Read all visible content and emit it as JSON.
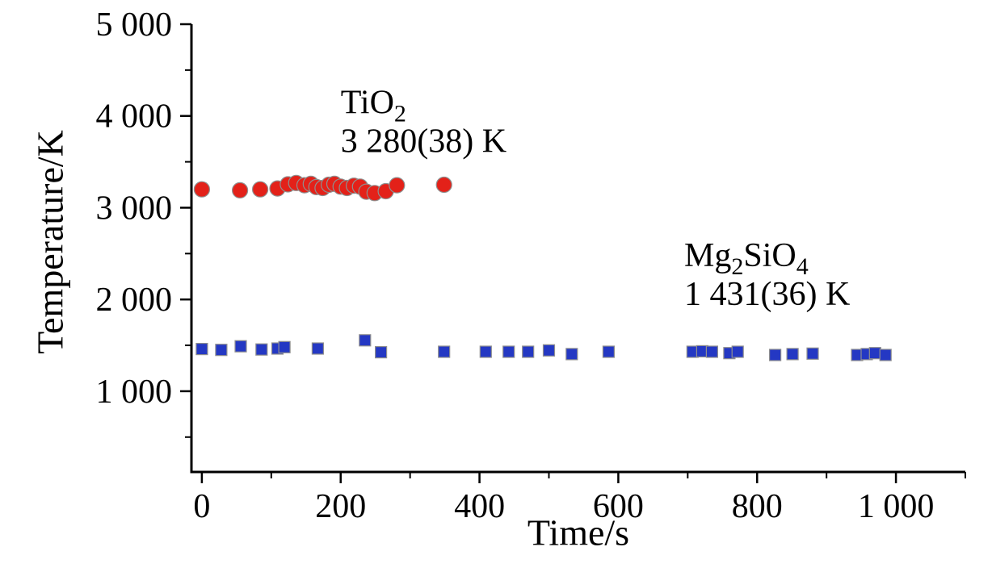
{
  "chart_data": {
    "type": "scatter",
    "title": "",
    "xlabel": "Time/s",
    "ylabel": "Temperature/K",
    "xlim": [
      -15,
      1100
    ],
    "ylim": [
      120,
      5000
    ],
    "x_ticks": [
      0,
      200,
      400,
      600,
      800,
      1000
    ],
    "x_tick_labels": [
      "0",
      "200",
      "400",
      "600",
      "800",
      "1 000"
    ],
    "x_minor_step": 100,
    "y_ticks": [
      1000,
      2000,
      3000,
      4000,
      5000
    ],
    "y_tick_labels": [
      "1 000",
      "2 000",
      "3 000",
      "4 000",
      "5 000"
    ],
    "y_minor_step": 500,
    "grid": false,
    "legend_position": "none",
    "series": [
      {
        "name": "TiO2",
        "marker": "circle",
        "color": "#e32119",
        "edge_color": "#8f8f8f",
        "points": [
          [
            0,
            3200
          ],
          [
            55,
            3190
          ],
          [
            84,
            3200
          ],
          [
            109,
            3210
          ],
          [
            124,
            3255
          ],
          [
            136,
            3270
          ],
          [
            148,
            3245
          ],
          [
            157,
            3260
          ],
          [
            165,
            3225
          ],
          [
            174,
            3215
          ],
          [
            183,
            3250
          ],
          [
            191,
            3260
          ],
          [
            200,
            3230
          ],
          [
            209,
            3215
          ],
          [
            219,
            3240
          ],
          [
            228,
            3230
          ],
          [
            237,
            3175
          ],
          [
            249,
            3160
          ],
          [
            265,
            3180
          ],
          [
            281,
            3245
          ],
          [
            349,
            3250
          ]
        ],
        "annotation": {
          "x": 200,
          "y": 4030,
          "lines": [
            [
              {
                "t": "TiO"
              },
              {
                "sub": "2"
              }
            ],
            [
              {
                "t": "3 280(38) K"
              }
            ]
          ]
        }
      },
      {
        "name": "Mg2SiO4",
        "marker": "square",
        "color": "#2438c3",
        "edge_color": "#8f8f8f",
        "points": [
          [
            0,
            1460
          ],
          [
            28,
            1450
          ],
          [
            56,
            1490
          ],
          [
            86,
            1455
          ],
          [
            109,
            1465
          ],
          [
            119,
            1480
          ],
          [
            167,
            1465
          ],
          [
            235,
            1555
          ],
          [
            258,
            1425
          ],
          [
            349,
            1430
          ],
          [
            409,
            1430
          ],
          [
            442,
            1430
          ],
          [
            470,
            1430
          ],
          [
            500,
            1445
          ],
          [
            533,
            1405
          ],
          [
            586,
            1430
          ],
          [
            707,
            1430
          ],
          [
            721,
            1435
          ],
          [
            735,
            1430
          ],
          [
            760,
            1415
          ],
          [
            772,
            1430
          ],
          [
            826,
            1395
          ],
          [
            851,
            1405
          ],
          [
            880,
            1410
          ],
          [
            944,
            1395
          ],
          [
            958,
            1405
          ],
          [
            970,
            1415
          ],
          [
            985,
            1395
          ]
        ],
        "annotation": {
          "x": 695,
          "y": 2360,
          "lines": [
            [
              {
                "t": "Mg"
              },
              {
                "sub": "2"
              },
              {
                "t": "SiO"
              },
              {
                "sub": "4"
              }
            ],
            [
              {
                "t": "1 431(36) K"
              }
            ]
          ]
        }
      }
    ]
  }
}
